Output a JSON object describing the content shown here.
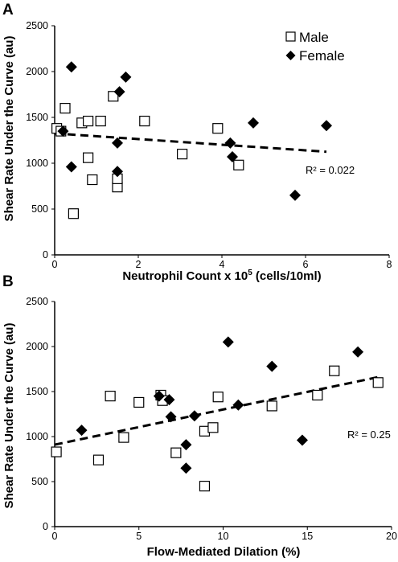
{
  "chart_data": [
    {
      "type": "scatter",
      "panel_label": "A",
      "xlabel": "Neutrophil Count x 10",
      "xlabel_sup": "5",
      "xlabel_suffix": " (cells/10ml)",
      "ylabel": "Shear Rate Under the Curve (au)",
      "xlim": [
        0,
        8
      ],
      "ylim": [
        0,
        2500
      ],
      "xticks": [
        0,
        2,
        4,
        6,
        8
      ],
      "yticks": [
        0,
        500,
        1000,
        1500,
        2000,
        2500
      ],
      "grid": false,
      "legend": {
        "position": "top-right",
        "entries": [
          "Male",
          "Female"
        ]
      },
      "r2_label": "R² = 0.022",
      "trendline": {
        "x": [
          0,
          6.5
        ],
        "y": [
          1325,
          1125
        ]
      },
      "series": [
        {
          "name": "Male",
          "marker": "open-square",
          "points": [
            [
              0.05,
              1380
            ],
            [
              0.15,
              1350
            ],
            [
              0.25,
              1600
            ],
            [
              0.45,
              450
            ],
            [
              0.65,
              1440
            ],
            [
              0.8,
              1060
            ],
            [
              0.8,
              1460
            ],
            [
              0.9,
              820
            ],
            [
              1.1,
              1460
            ],
            [
              1.4,
              1730
            ],
            [
              1.5,
              740
            ],
            [
              1.5,
              830
            ],
            [
              2.15,
              1460
            ],
            [
              3.05,
              1100
            ],
            [
              3.9,
              1380
            ],
            [
              4.4,
              980
            ]
          ]
        },
        {
          "name": "Female",
          "marker": "filled-diamond",
          "points": [
            [
              0.2,
              1350
            ],
            [
              0.4,
              2050
            ],
            [
              0.4,
              960
            ],
            [
              1.5,
              1220
            ],
            [
              1.5,
              910
            ],
            [
              1.55,
              1780
            ],
            [
              1.7,
              1940
            ],
            [
              4.2,
              1220
            ],
            [
              4.25,
              1070
            ],
            [
              4.75,
              1440
            ],
            [
              5.75,
              650
            ],
            [
              6.5,
              1410
            ]
          ]
        }
      ]
    },
    {
      "type": "scatter",
      "panel_label": "B",
      "xlabel": "Flow-Mediated Dilation (%)",
      "ylabel": "Shear Rate Under the Curve (au)",
      "xlim": [
        0,
        20
      ],
      "ylim": [
        0,
        2500
      ],
      "xticks": [
        0,
        5,
        10,
        15,
        20
      ],
      "yticks": [
        0,
        500,
        1000,
        1500,
        2000,
        2500
      ],
      "grid": false,
      "r2_label": "R² = 0.25",
      "trendline": {
        "x": [
          0,
          19.2
        ],
        "y": [
          910,
          1660
        ]
      },
      "series": [
        {
          "name": "Male",
          "marker": "open-square",
          "points": [
            [
              0.1,
              830
            ],
            [
              2.6,
              740
            ],
            [
              3.3,
              1450
            ],
            [
              4.1,
              990
            ],
            [
              5.0,
              1380
            ],
            [
              6.3,
              1460
            ],
            [
              6.4,
              1400
            ],
            [
              7.2,
              820
            ],
            [
              8.9,
              450
            ],
            [
              8.9,
              1060
            ],
            [
              9.4,
              1100
            ],
            [
              9.7,
              1440
            ],
            [
              12.9,
              1340
            ],
            [
              15.6,
              1460
            ],
            [
              16.6,
              1730
            ],
            [
              19.2,
              1600
            ]
          ]
        },
        {
          "name": "Female",
          "marker": "filled-diamond",
          "points": [
            [
              1.6,
              1070
            ],
            [
              6.2,
              1450
            ],
            [
              6.8,
              1410
            ],
            [
              6.9,
              1220
            ],
            [
              7.8,
              910
            ],
            [
              7.8,
              650
            ],
            [
              8.3,
              1230
            ],
            [
              10.3,
              2050
            ],
            [
              10.9,
              1350
            ],
            [
              12.9,
              1780
            ],
            [
              14.7,
              960
            ],
            [
              18.0,
              1940
            ]
          ]
        }
      ]
    }
  ]
}
